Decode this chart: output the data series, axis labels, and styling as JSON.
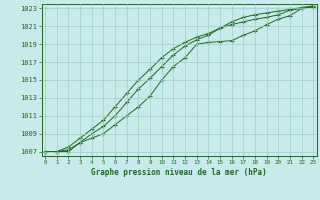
{
  "title": "Graphe pression niveau de la mer (hPa)",
  "bg_color": "#c8eaea",
  "grid_color": "#9ecece",
  "line_color": "#1a6b1a",
  "x_values": [
    0,
    1,
    2,
    3,
    4,
    5,
    6,
    7,
    8,
    9,
    10,
    11,
    12,
    13,
    14,
    15,
    16,
    17,
    18,
    19,
    20,
    21,
    22,
    23
  ],
  "line1": [
    1007,
    1007,
    1007,
    1008,
    1008.5,
    1009,
    1010,
    1011,
    1012,
    1013.2,
    1015,
    1016.5,
    1017.5,
    1019,
    1019.2,
    1019.3,
    1019.4,
    1020,
    1020.5,
    1021.2,
    1021.8,
    1022.2,
    1023,
    1023.2
  ],
  "line2": [
    1007,
    1007,
    1007.2,
    1008,
    1009,
    1009.8,
    1011,
    1012.5,
    1014,
    1015.2,
    1016.5,
    1017.8,
    1018.8,
    1019.5,
    1020,
    1020.8,
    1021.2,
    1021.5,
    1021.8,
    1022,
    1022.3,
    1022.8,
    1023,
    1023.2
  ],
  "line3": [
    1007,
    1007,
    1007.5,
    1008.5,
    1009.5,
    1010.5,
    1012,
    1013.5,
    1015,
    1016.2,
    1017.5,
    1018.5,
    1019.2,
    1019.8,
    1020.2,
    1020.8,
    1021.5,
    1022,
    1022.3,
    1022.5,
    1022.7,
    1022.9,
    1023.1,
    1023.3
  ],
  "ylim_min": 1006.5,
  "ylim_max": 1023.5,
  "yticks": [
    1007,
    1009,
    1011,
    1013,
    1015,
    1017,
    1019,
    1021,
    1023
  ],
  "xticks": [
    0,
    1,
    2,
    3,
    4,
    5,
    6,
    7,
    8,
    9,
    10,
    11,
    12,
    13,
    14,
    15,
    16,
    17,
    18,
    19,
    20,
    21,
    22,
    23
  ]
}
